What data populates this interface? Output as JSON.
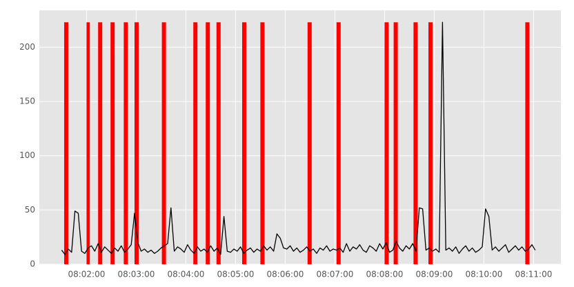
{
  "chart_data": {
    "type": "line",
    "color": "#000000",
    "span_color": "#ff0000",
    "span_ymax": 223,
    "xlim": [
      "08:01:03",
      "08:11:33"
    ],
    "ylim": [
      0,
      234
    ],
    "yticks": [
      0,
      50,
      100,
      150,
      200
    ],
    "xticks": [
      "08:02:00",
      "08:03:00",
      "08:04:00",
      "08:05:00",
      "08:06:00",
      "08:07:00",
      "08:08:00",
      "08:09:00",
      "08:10:00",
      "08:11:00"
    ],
    "grid": true,
    "spans": [
      {
        "start": "08:01:33",
        "end": "08:01:38"
      },
      {
        "start": "08:02:00",
        "end": "08:02:04"
      },
      {
        "start": "08:02:14",
        "end": "08:02:19"
      },
      {
        "start": "08:02:29",
        "end": "08:02:34"
      },
      {
        "start": "08:02:45",
        "end": "08:02:50"
      },
      {
        "start": "08:02:58",
        "end": "08:03:03"
      },
      {
        "start": "08:03:31",
        "end": "08:03:36"
      },
      {
        "start": "08:04:09",
        "end": "08:04:14"
      },
      {
        "start": "08:04:24",
        "end": "08:04:29"
      },
      {
        "start": "08:04:37",
        "end": "08:04:42"
      },
      {
        "start": "08:05:08",
        "end": "08:05:13"
      },
      {
        "start": "08:05:30",
        "end": "08:05:35"
      },
      {
        "start": "08:06:27",
        "end": "08:06:32"
      },
      {
        "start": "08:07:02",
        "end": "08:07:07"
      },
      {
        "start": "08:08:00",
        "end": "08:08:05"
      },
      {
        "start": "08:08:11",
        "end": "08:08:16"
      },
      {
        "start": "08:08:35",
        "end": "08:08:40"
      },
      {
        "start": "08:08:53",
        "end": "08:08:58"
      },
      {
        "start": "08:10:50",
        "end": "08:10:55"
      }
    ],
    "x": [
      "08:01:30",
      "08:01:34",
      "08:01:38",
      "08:01:42",
      "08:01:46",
      "08:01:50",
      "08:01:54",
      "08:01:58",
      "08:02:02",
      "08:02:06",
      "08:02:10",
      "08:02:14",
      "08:02:18",
      "08:02:22",
      "08:02:26",
      "08:02:30",
      "08:02:34",
      "08:02:38",
      "08:02:42",
      "08:02:46",
      "08:02:50",
      "08:02:54",
      "08:02:58",
      "08:03:02",
      "08:03:06",
      "08:03:10",
      "08:03:14",
      "08:03:18",
      "08:03:22",
      "08:03:26",
      "08:03:30",
      "08:03:34",
      "08:03:38",
      "08:03:42",
      "08:03:46",
      "08:03:50",
      "08:03:54",
      "08:03:58",
      "08:04:02",
      "08:04:06",
      "08:04:10",
      "08:04:14",
      "08:04:18",
      "08:04:22",
      "08:04:26",
      "08:04:30",
      "08:04:34",
      "08:04:38",
      "08:04:42",
      "08:04:46",
      "08:04:50",
      "08:04:54",
      "08:04:58",
      "08:05:02",
      "08:05:06",
      "08:05:10",
      "08:05:14",
      "08:05:18",
      "08:05:22",
      "08:05:26",
      "08:05:30",
      "08:05:34",
      "08:05:38",
      "08:05:42",
      "08:05:46",
      "08:05:50",
      "08:05:54",
      "08:05:58",
      "08:06:02",
      "08:06:06",
      "08:06:10",
      "08:06:14",
      "08:06:18",
      "08:06:22",
      "08:06:26",
      "08:06:30",
      "08:06:34",
      "08:06:38",
      "08:06:42",
      "08:06:46",
      "08:06:50",
      "08:06:54",
      "08:06:58",
      "08:07:02",
      "08:07:06",
      "08:07:10",
      "08:07:14",
      "08:07:18",
      "08:07:22",
      "08:07:26",
      "08:07:30",
      "08:07:34",
      "08:07:38",
      "08:07:42",
      "08:07:46",
      "08:07:50",
      "08:07:54",
      "08:07:58",
      "08:08:02",
      "08:08:06",
      "08:08:10",
      "08:08:14",
      "08:08:18",
      "08:08:22",
      "08:08:26",
      "08:08:30",
      "08:08:34",
      "08:08:38",
      "08:08:42",
      "08:08:46",
      "08:08:50",
      "08:08:54",
      "08:08:58",
      "08:09:02",
      "08:09:06",
      "08:09:10",
      "08:09:14",
      "08:09:18",
      "08:09:22",
      "08:09:26",
      "08:09:30",
      "08:09:34",
      "08:09:38",
      "08:09:42",
      "08:09:46",
      "08:09:50",
      "08:09:54",
      "08:09:58",
      "08:10:02",
      "08:10:06",
      "08:10:10",
      "08:10:14",
      "08:10:18",
      "08:10:22",
      "08:10:26",
      "08:10:30",
      "08:10:34",
      "08:10:38",
      "08:10:42",
      "08:10:46",
      "08:10:50",
      "08:10:54",
      "08:10:58",
      "08:11:02"
    ],
    "values": [
      13,
      9,
      14,
      11,
      49,
      47,
      12,
      10,
      15,
      17,
      12,
      19,
      11,
      16,
      13,
      10,
      15,
      12,
      17,
      11,
      14,
      18,
      47,
      20,
      12,
      14,
      11,
      13,
      10,
      12,
      15,
      17,
      19,
      52,
      12,
      16,
      14,
      11,
      18,
      13,
      10,
      16,
      12,
      14,
      11,
      17,
      12,
      15,
      9,
      44,
      12,
      11,
      14,
      12,
      16,
      10,
      13,
      15,
      11,
      14,
      12,
      17,
      13,
      16,
      12,
      28,
      24,
      15,
      14,
      17,
      12,
      15,
      11,
      13,
      16,
      12,
      14,
      10,
      15,
      13,
      17,
      12,
      14,
      13,
      15,
      11,
      19,
      12,
      16,
      14,
      18,
      13,
      11,
      17,
      15,
      12,
      19,
      14,
      20,
      11,
      13,
      21,
      15,
      12,
      17,
      14,
      19,
      12,
      52,
      51,
      13,
      15,
      12,
      14,
      11,
      223,
      13,
      15,
      12,
      16,
      10,
      14,
      17,
      12,
      15,
      11,
      13,
      16,
      51,
      44,
      13,
      16,
      12,
      15,
      18,
      11,
      14,
      17,
      13,
      16,
      12,
      14,
      18,
      13
    ]
  }
}
